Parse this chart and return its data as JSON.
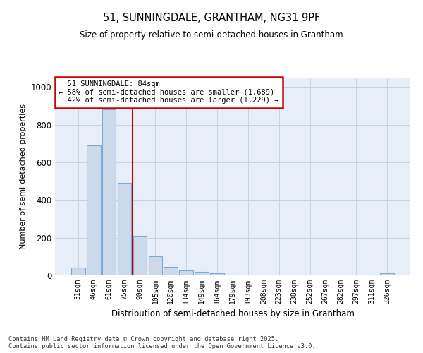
{
  "title1": "51, SUNNINGDALE, GRANTHAM, NG31 9PF",
  "title2": "Size of property relative to semi-detached houses in Grantham",
  "xlabel": "Distribution of semi-detached houses by size in Grantham",
  "ylabel": "Number of semi-detached properties",
  "categories": [
    "31sqm",
    "46sqm",
    "61sqm",
    "75sqm",
    "90sqm",
    "105sqm",
    "120sqm",
    "134sqm",
    "149sqm",
    "164sqm",
    "179sqm",
    "193sqm",
    "208sqm",
    "223sqm",
    "238sqm",
    "252sqm",
    "267sqm",
    "282sqm",
    "297sqm",
    "311sqm",
    "326sqm"
  ],
  "values": [
    40,
    690,
    880,
    490,
    210,
    100,
    45,
    25,
    20,
    10,
    5,
    0,
    0,
    0,
    0,
    0,
    0,
    0,
    0,
    0,
    10
  ],
  "bar_color": "#ccd9ea",
  "bar_edge_color": "#7aacd4",
  "vline_x": 3.5,
  "property_label": "51 SUNNINGDALE: 84sqm",
  "smaller_pct": "58%",
  "smaller_count": "1,689",
  "larger_pct": "42%",
  "larger_count": "1,229",
  "annotation_box_color": "#ffffff",
  "annotation_box_edge": "#cc0000",
  "vline_color": "#cc0000",
  "grid_color": "#c8d4e4",
  "plot_bg_color": "#e8eef8",
  "footer": "Contains HM Land Registry data © Crown copyright and database right 2025.\nContains public sector information licensed under the Open Government Licence v3.0.",
  "ylim": [
    0,
    1050
  ],
  "yticks": [
    0,
    200,
    400,
    600,
    800,
    1000
  ]
}
